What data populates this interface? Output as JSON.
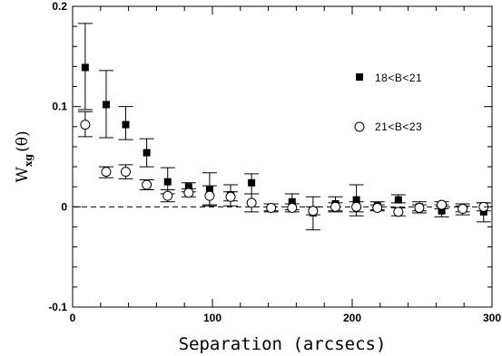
{
  "chart_data": {
    "type": "scatter",
    "xlabel": "Separation (arcsecs)",
    "ylabel": {
      "main": "W",
      "sub": "xg",
      "tail": "(θ)"
    },
    "xlim": [
      0,
      300
    ],
    "ylim": [
      -0.1,
      0.2
    ],
    "x_ticks": [
      {
        "value": 0,
        "label": "0"
      },
      {
        "value": 100,
        "label": "100"
      },
      {
        "value": 200,
        "label": "200"
      },
      {
        "value": 300,
        "label": "300"
      }
    ],
    "y_ticks": [
      {
        "value": -0.1,
        "label": "-0.1"
      },
      {
        "value": 0,
        "label": "0"
      },
      {
        "value": 0.1,
        "label": "0.1"
      },
      {
        "value": 0.2,
        "label": "0.2"
      }
    ],
    "grid": false,
    "reference_line": {
      "y": 0,
      "style": "dashed"
    },
    "legend_position": "right",
    "series": [
      {
        "name": "18<B<21",
        "marker": "filled-square",
        "points": [
          {
            "x": 9,
            "y": 0.139,
            "lo": 0.097,
            "hi": 0.183
          },
          {
            "x": 24,
            "y": 0.102,
            "lo": 0.069,
            "hi": 0.136
          },
          {
            "x": 38,
            "y": 0.082,
            "lo": 0.067,
            "hi": 0.1
          },
          {
            "x": 53,
            "y": 0.054,
            "lo": 0.04,
            "hi": 0.068
          },
          {
            "x": 68,
            "y": 0.025,
            "lo": 0.013,
            "hi": 0.039
          },
          {
            "x": 83,
            "y": 0.02,
            "lo": 0.015,
            "hi": 0.024
          },
          {
            "x": 98,
            "y": 0.017,
            "lo": 0.002,
            "hi": 0.034
          },
          {
            "x": 113,
            "y": 0.012,
            "lo": 0.001,
            "hi": 0.022
          },
          {
            "x": 128,
            "y": 0.024,
            "lo": 0.013,
            "hi": 0.033
          },
          {
            "x": 142,
            "y": -0.001,
            "lo": -0.004,
            "hi": 0.003
          },
          {
            "x": 157,
            "y": 0.005,
            "lo": -0.003,
            "hi": 0.013
          },
          {
            "x": 172,
            "y": -0.006,
            "lo": -0.023,
            "hi": 0.01
          },
          {
            "x": 188,
            "y": 0.003,
            "lo": -0.005,
            "hi": 0.01
          },
          {
            "x": 203,
            "y": 0.007,
            "lo": -0.009,
            "hi": 0.022
          },
          {
            "x": 218,
            "y": 0.001,
            "lo": -0.003,
            "hi": 0.005
          },
          {
            "x": 233,
            "y": 0.007,
            "lo": 0.004,
            "hi": 0.012
          },
          {
            "x": 248,
            "y": 0.0,
            "lo": -0.006,
            "hi": 0.005
          },
          {
            "x": 264,
            "y": -0.004,
            "lo": -0.01,
            "hi": 0.002
          },
          {
            "x": 279,
            "y": -0.002,
            "lo": -0.008,
            "hi": 0.003
          },
          {
            "x": 294,
            "y": -0.005,
            "lo": -0.015,
            "hi": 0.004
          }
        ]
      },
      {
        "name": "21<B<23",
        "marker": "open-circle",
        "points": [
          {
            "x": 9,
            "y": 0.082,
            "lo": 0.07,
            "hi": 0.095
          },
          {
            "x": 24,
            "y": 0.035,
            "lo": 0.029,
            "hi": 0.04
          },
          {
            "x": 38,
            "y": 0.035,
            "lo": 0.028,
            "hi": 0.042
          },
          {
            "x": 53,
            "y": 0.022,
            "lo": 0.017,
            "hi": 0.027
          },
          {
            "x": 68,
            "y": 0.011,
            "lo": 0.005,
            "hi": 0.017
          },
          {
            "x": 83,
            "y": 0.014,
            "lo": 0.01,
            "hi": 0.018
          },
          {
            "x": 98,
            "y": 0.011,
            "lo": 0.001,
            "hi": 0.021
          },
          {
            "x": 113,
            "y": 0.01,
            "lo": 0.006,
            "hi": 0.015
          },
          {
            "x": 128,
            "y": 0.004,
            "lo": -0.005,
            "hi": 0.013
          },
          {
            "x": 142,
            "y": -0.001,
            "lo": -0.005,
            "hi": 0.003
          },
          {
            "x": 157,
            "y": -0.001,
            "lo": -0.005,
            "hi": 0.003
          },
          {
            "x": 172,
            "y": -0.004,
            "lo": -0.008,
            "hi": 0.0
          },
          {
            "x": 188,
            "y": 0.0,
            "lo": -0.004,
            "hi": 0.004
          },
          {
            "x": 203,
            "y": 0.0,
            "lo": -0.005,
            "hi": 0.005
          },
          {
            "x": 218,
            "y": -0.001,
            "lo": -0.004,
            "hi": 0.002
          },
          {
            "x": 233,
            "y": -0.005,
            "lo": -0.009,
            "hi": -0.001
          },
          {
            "x": 248,
            "y": -0.001,
            "lo": -0.004,
            "hi": 0.002
          },
          {
            "x": 264,
            "y": 0.002,
            "lo": -0.002,
            "hi": 0.005
          },
          {
            "x": 279,
            "y": -0.002,
            "lo": -0.005,
            "hi": 0.001
          },
          {
            "x": 294,
            "y": 0.0,
            "lo": -0.004,
            "hi": 0.004
          }
        ]
      }
    ]
  }
}
